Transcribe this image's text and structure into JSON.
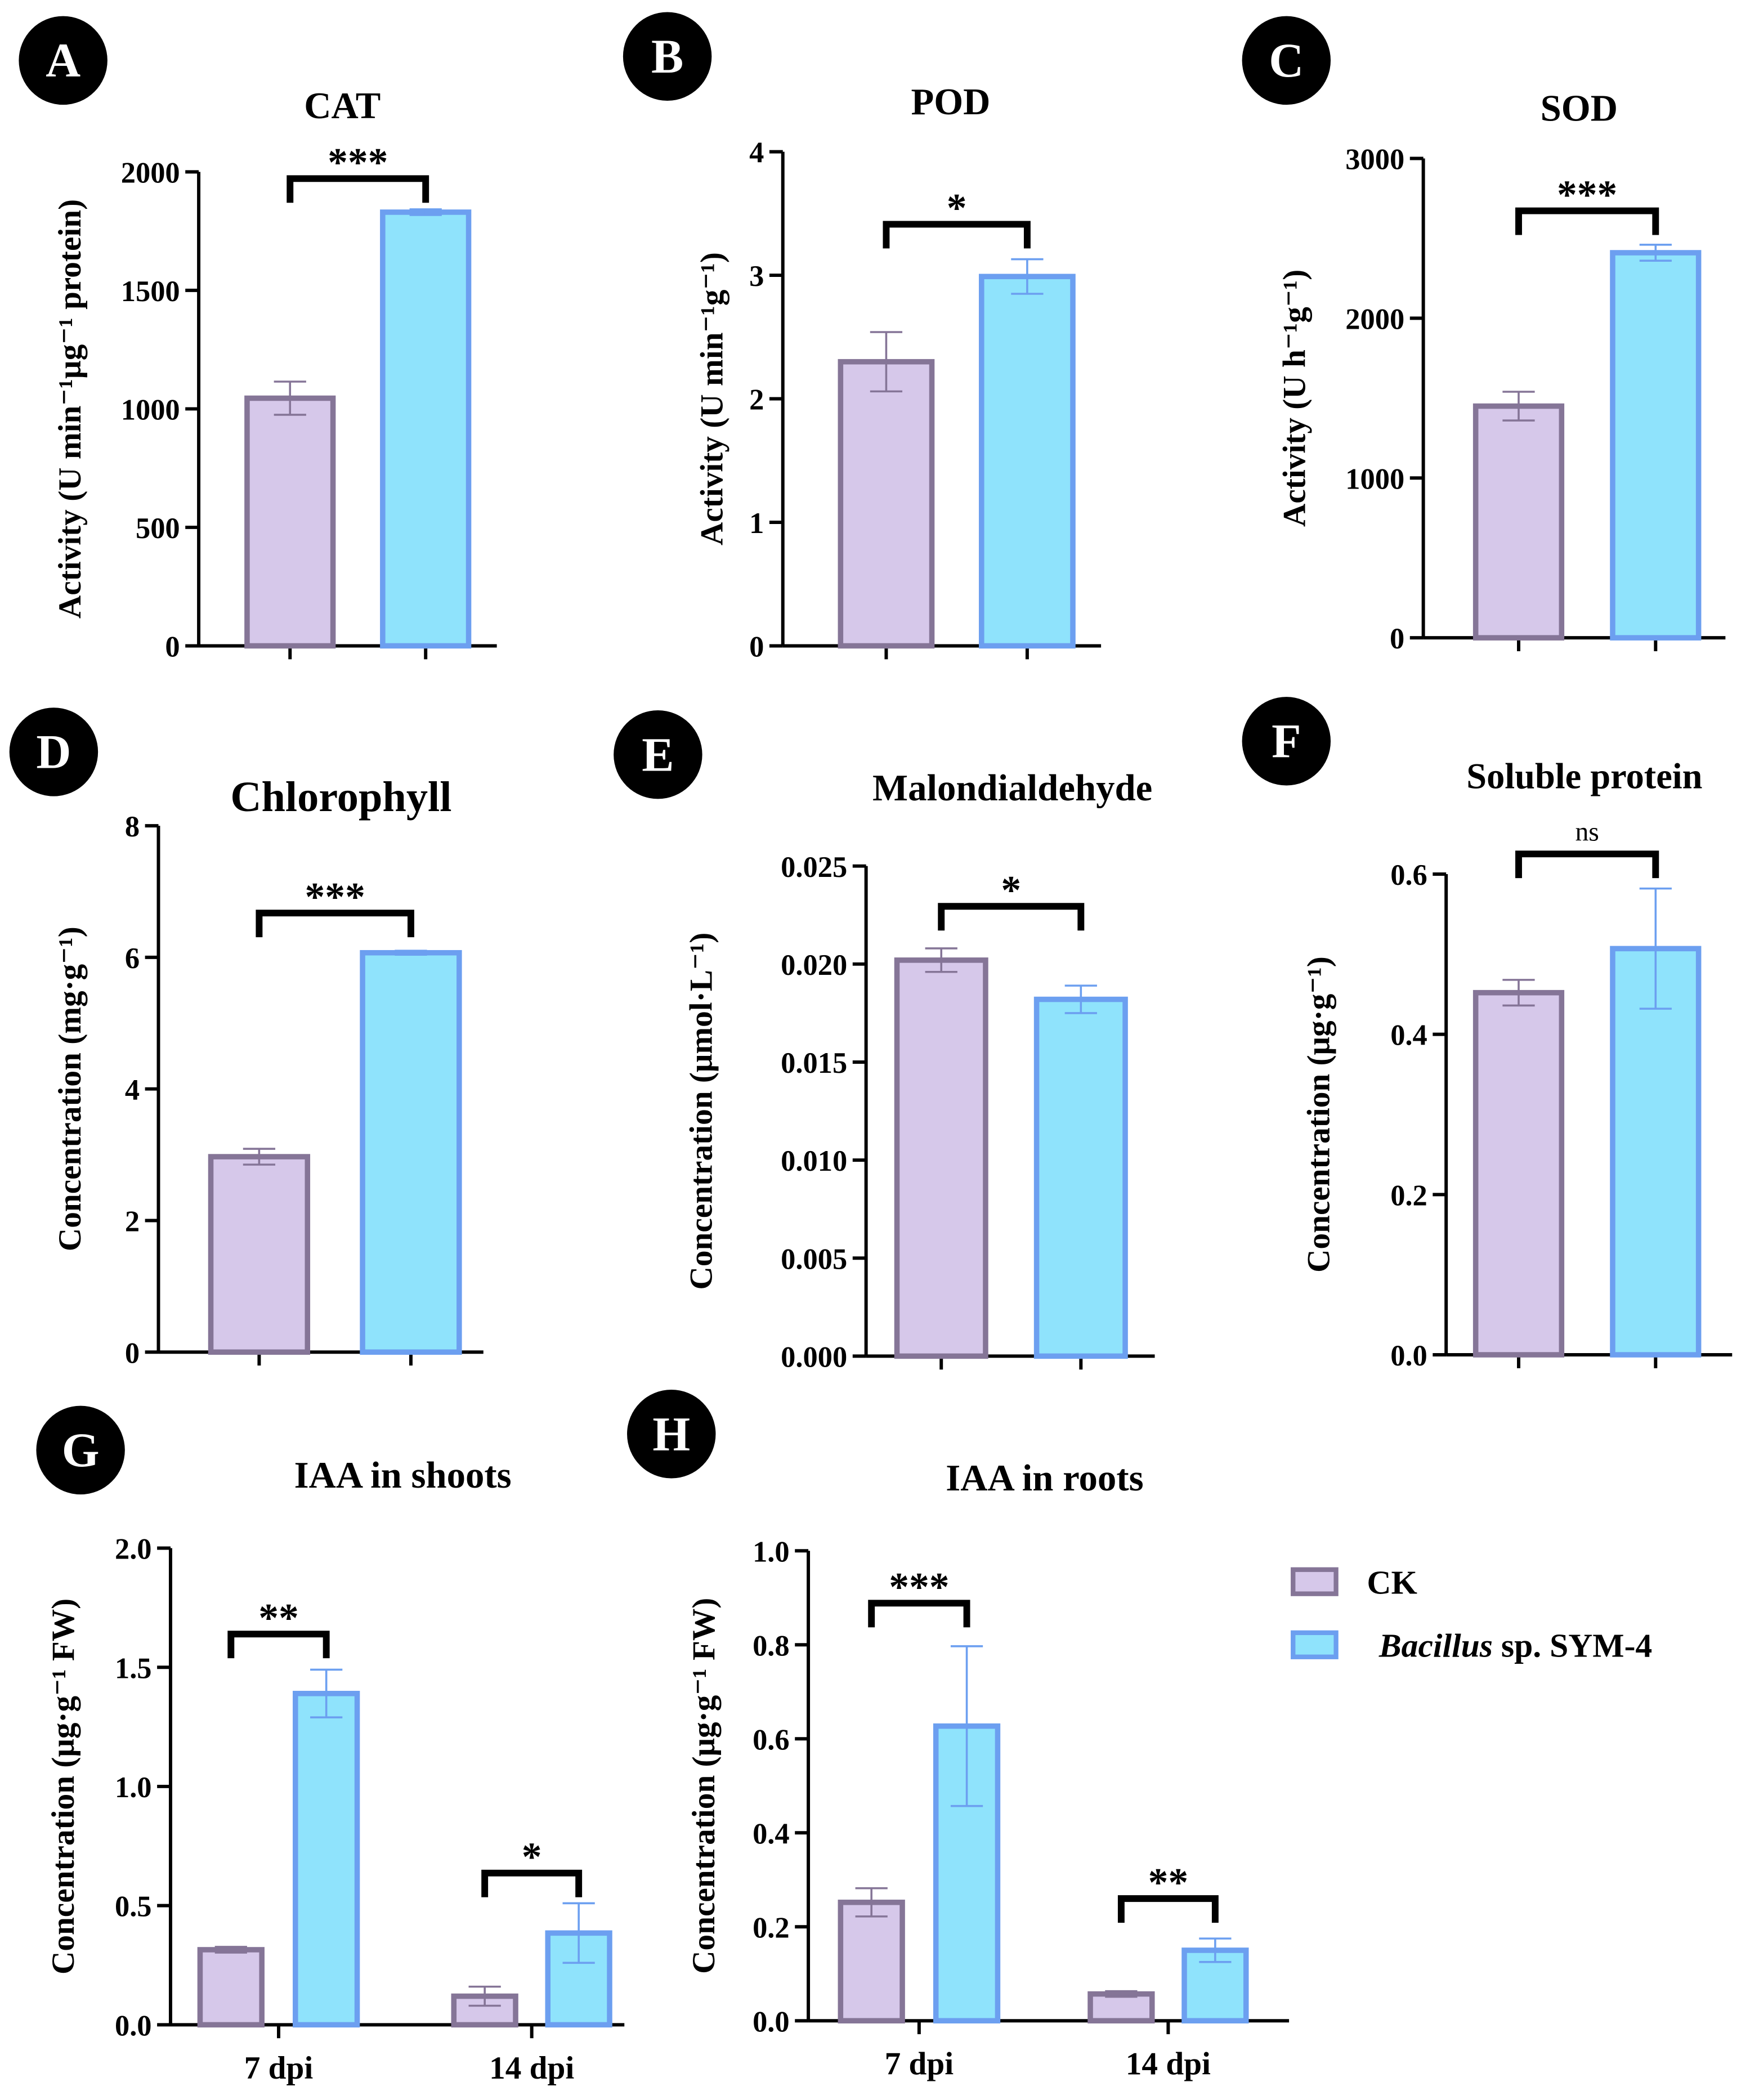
{
  "colors": {
    "ck_fill": "#d6c8ea",
    "ck_stroke": "#857597",
    "bac_fill": "#8fe3fc",
    "bac_stroke": "#6c9ff0",
    "axis": "#000000"
  },
  "legend": [
    {
      "label": "CK",
      "italic_part": ""
    },
    {
      "label": "Bacillus sp. SYM-4",
      "italic_part": "Bacillus"
    }
  ],
  "chart_data": [
    {
      "letter": "A",
      "type": "bar",
      "title": "CAT",
      "ylabel": "Activity (U min⁻¹µg⁻¹ protein)",
      "ylim": [
        0,
        2000
      ],
      "yticks": [
        "0",
        "500",
        "1000",
        "1500",
        "2000"
      ],
      "categories": [
        ""
      ],
      "series": [
        {
          "name": "CK",
          "values": [
            1045
          ],
          "errors": [
            70
          ]
        },
        {
          "name": "Bacillus sp. SYM-4",
          "values": [
            1830
          ],
          "errors": [
            12
          ]
        }
      ],
      "significance": [
        "***"
      ]
    },
    {
      "letter": "B",
      "type": "bar",
      "title": "POD",
      "ylabel": "Activity (U min⁻¹g⁻¹)",
      "ylim": [
        0,
        4
      ],
      "yticks": [
        "0",
        "1",
        "2",
        "3",
        "4"
      ],
      "categories": [
        ""
      ],
      "series": [
        {
          "name": "CK",
          "values": [
            2.3
          ],
          "errors": [
            0.24
          ]
        },
        {
          "name": "Bacillus sp. SYM-4",
          "values": [
            2.99
          ],
          "errors": [
            0.14
          ]
        }
      ],
      "significance": [
        "*"
      ]
    },
    {
      "letter": "C",
      "type": "bar",
      "title": "SOD",
      "ylabel": "Activity (U h⁻¹g⁻¹)",
      "ylim": [
        0,
        3000
      ],
      "yticks": [
        "0",
        "1000",
        "2000",
        "3000"
      ],
      "categories": [
        ""
      ],
      "series": [
        {
          "name": "CK",
          "values": [
            1450
          ],
          "errors": [
            90
          ]
        },
        {
          "name": "Bacillus sp. SYM-4",
          "values": [
            2410
          ],
          "errors": [
            50
          ]
        }
      ],
      "significance": [
        "***"
      ]
    },
    {
      "letter": "D",
      "type": "bar",
      "title": "Chlorophyll",
      "ylabel": "Concentration (mg·g⁻¹)",
      "ylim": [
        0,
        8
      ],
      "yticks": [
        "0",
        "2",
        "4",
        "6",
        "8"
      ],
      "categories": [
        ""
      ],
      "series": [
        {
          "name": "CK",
          "values": [
            2.97
          ],
          "errors": [
            0.12
          ]
        },
        {
          "name": "Bacillus sp. SYM-4",
          "values": [
            6.07
          ],
          "errors": [
            0.03
          ]
        }
      ],
      "significance": [
        "***"
      ]
    },
    {
      "letter": "E",
      "type": "bar",
      "title": "Malondialdehyde",
      "ylabel": "Concentration (μmol·L⁻¹)",
      "ylim": [
        0,
        0.025
      ],
      "yticks": [
        "0.000",
        "0.005",
        "0.010",
        "0.015",
        "0.020",
        "0.025"
      ],
      "categories": [
        ""
      ],
      "series": [
        {
          "name": "CK",
          "values": [
            0.0202
          ],
          "errors": [
            0.0006
          ]
        },
        {
          "name": "Bacillus sp. SYM-4",
          "values": [
            0.0182
          ],
          "errors": [
            0.0007
          ]
        }
      ],
      "significance": [
        "*"
      ]
    },
    {
      "letter": "F",
      "type": "bar",
      "title": "Soluble protein",
      "ylabel": "Concentration (μg·g⁻¹)",
      "ylim": [
        0,
        0.6
      ],
      "yticks": [
        "0.0",
        "0.2",
        "0.4",
        "0.6"
      ],
      "categories": [
        ""
      ],
      "series": [
        {
          "name": "CK",
          "values": [
            0.452
          ],
          "errors": [
            0.016
          ]
        },
        {
          "name": "Bacillus sp. SYM-4",
          "values": [
            0.507
          ],
          "errors": [
            0.075
          ]
        }
      ],
      "significance": [
        "ns"
      ]
    },
    {
      "letter": "G",
      "type": "bar",
      "title": "IAA in shoots",
      "ylabel": "Concentration (μg·g⁻¹ FW)",
      "ylim": [
        0,
        2.0
      ],
      "yticks": [
        "0.0",
        "0.5",
        "1.0",
        "1.5",
        "2.0"
      ],
      "categories": [
        "7 dpi",
        "14 dpi"
      ],
      "series": [
        {
          "name": "CK",
          "values": [
            0.315,
            0.12
          ],
          "errors": [
            0.012,
            0.04
          ]
        },
        {
          "name": "Bacillus sp. SYM-4",
          "values": [
            1.39,
            0.385
          ],
          "errors": [
            0.1,
            0.125
          ]
        }
      ],
      "significance": [
        "**",
        "*"
      ]
    },
    {
      "letter": "H",
      "type": "bar",
      "title": "IAA in roots",
      "ylabel": "Concentration (μg·g⁻¹ FW)",
      "ylim": [
        0,
        1.0
      ],
      "yticks": [
        "0.0",
        "0.2",
        "0.4",
        "0.6",
        "0.8",
        "1.0"
      ],
      "categories": [
        "7 dpi",
        "14 dpi"
      ],
      "series": [
        {
          "name": "CK",
          "values": [
            0.252,
            0.057
          ],
          "errors": [
            0.03,
            0.006
          ]
        },
        {
          "name": "Bacillus sp. SYM-4",
          "values": [
            0.627,
            0.15
          ],
          "errors": [
            0.17,
            0.025
          ]
        }
      ],
      "significance": [
        "***",
        "**"
      ]
    }
  ]
}
